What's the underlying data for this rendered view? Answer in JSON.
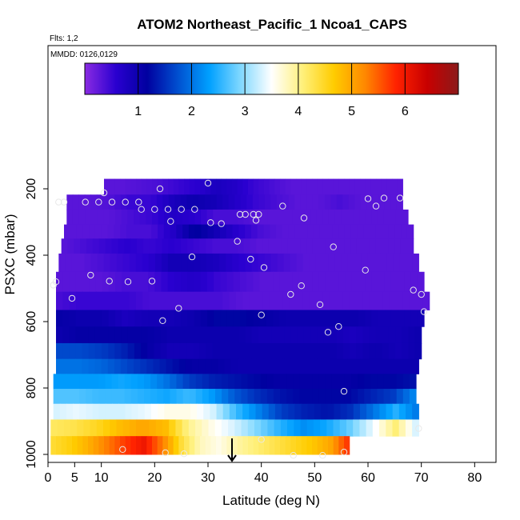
{
  "chart_data": {
    "type": "heatmap",
    "title": "ATOM2 Northeast_Pacific_1 Ncoa1_CAPS",
    "annotations": [
      "Flts: 1,2",
      "MMDD: 0126,0129"
    ],
    "xlabel": "Latitude (deg N)",
    "ylabel": "PSXC (mbar)",
    "xlim": [
      0,
      84
    ],
    "ylim": [
      1000,
      0
    ],
    "x_ticks": [
      0,
      5,
      10,
      20,
      30,
      40,
      50,
      60,
      70,
      80
    ],
    "y_ticks": [
      200,
      400,
      600,
      800,
      1000
    ],
    "colorbar": {
      "min": 0,
      "max": 7,
      "ticks": [
        1,
        2,
        3,
        4,
        5,
        6
      ],
      "colors": [
        "#8a2be2",
        "#2a00d0",
        "#0000a0",
        "#0050d0",
        "#00a0ff",
        "#80d8ff",
        "#ffffff",
        "#fff07a",
        "#ffcc00",
        "#ff8800",
        "#ff2200",
        "#c80000",
        "#8b1a1a"
      ]
    },
    "pressure_levels": [
      195,
      240,
      285,
      330,
      370,
      420,
      480,
      540,
      590,
      640,
      690,
      735,
      780,
      825,
      870,
      920,
      970
    ],
    "profiles": [
      {
        "lat_min": 10.5,
        "lat_max": 66.5,
        "values": [
          0.3,
          0.3,
          0.35,
          0.4,
          0.5,
          0.6,
          0.8,
          0.7,
          0.5,
          0.4,
          0.3,
          0.3,
          0.3,
          0.3,
          0.3,
          0.3,
          0.3
        ]
      },
      {
        "lat_min": 3.5,
        "lat_max": 66.5,
        "values": [
          0.3,
          0.3,
          0.35,
          0.5,
          0.5,
          0.8,
          1.0,
          0.9,
          0.7,
          0.5,
          0.4,
          0.3,
          0.3,
          0.4,
          0.3,
          0.3,
          0.3
        ]
      },
      {
        "lat_min": 3.5,
        "lat_max": 67.5,
        "values": [
          0.3,
          0.3,
          0.3,
          0.4,
          0.5,
          0.7,
          0.6,
          0.4,
          0.4,
          0.3,
          0.3,
          0.3,
          0.3,
          0.3,
          0.3,
          0.3,
          0.3
        ]
      },
      {
        "lat_min": 3.0,
        "lat_max": 68.5,
        "values": [
          0.3,
          0.3,
          0.3,
          0.4,
          0.4,
          0.7,
          1.2,
          0.9,
          0.6,
          0.4,
          0.3,
          0.3,
          0.3,
          0.3,
          0.3,
          0.3,
          0.3
        ]
      },
      {
        "lat_min": 2.5,
        "lat_max": 68.5,
        "values": [
          0.3,
          0.4,
          0.5,
          0.6,
          0.5,
          0.6,
          0.5,
          0.4,
          0.4,
          0.3,
          0.3,
          0.3,
          0.3,
          0.3,
          0.3,
          0.3,
          0.3
        ]
      },
      {
        "lat_min": 2.0,
        "lat_max": 69.5,
        "values": [
          0.3,
          0.3,
          0.4,
          0.5,
          0.6,
          0.9,
          0.9,
          0.8,
          0.6,
          0.5,
          0.4,
          0.3,
          0.3,
          0.3,
          0.3,
          0.3,
          0.3
        ]
      },
      {
        "lat_min": 1.5,
        "lat_max": 70.5,
        "values": [
          0.3,
          0.3,
          0.3,
          0.4,
          0.4,
          0.6,
          0.7,
          0.5,
          0.4,
          0.3,
          0.3,
          0.3,
          0.3,
          0.3,
          0.3,
          0.3,
          0.3
        ]
      },
      {
        "lat_min": 1.5,
        "lat_max": 71.5,
        "values": [
          0.4,
          0.5,
          0.5,
          0.5,
          0.4,
          0.4,
          0.4,
          0.4,
          0.3,
          0.3,
          0.3,
          0.3,
          0.3,
          0.3,
          0.3,
          0.3,
          0.3
        ]
      },
      {
        "lat_min": 1.5,
        "lat_max": 70.5,
        "values": [
          1.1,
          1.0,
          1.0,
          0.8,
          0.9,
          0.9,
          1.0,
          1.2,
          1.2,
          1.1,
          1.0,
          1.0,
          1.0,
          1.0,
          0.9,
          0.9,
          0.9
        ]
      },
      {
        "lat_min": 1.5,
        "lat_max": 70.0,
        "values": [
          1.0,
          1.1,
          1.1,
          1.1,
          1.1,
          1.0,
          1.0,
          1.0,
          1.0,
          0.9,
          0.9,
          0.9,
          0.9,
          0.8,
          0.9,
          0.9,
          1.0
        ]
      },
      {
        "lat_min": 1.5,
        "lat_max": 70.0,
        "values": [
          1.7,
          1.7,
          1.6,
          1.4,
          1.1,
          0.9,
          0.9,
          1.0,
          1.0,
          1.0,
          1.0,
          1.0,
          1.0,
          0.9,
          1.0,
          0.9,
          1.0
        ]
      },
      {
        "lat_min": 1.5,
        "lat_max": 69.5,
        "values": [
          2.0,
          2.0,
          1.9,
          1.7,
          1.5,
          1.3,
          1.1,
          1.1,
          1.0,
          1.0,
          1.0,
          1.0,
          1.0,
          1.0,
          1.0,
          1.0,
          1.0
        ]
      },
      {
        "lat_min": 1.0,
        "lat_max": 69.0,
        "values": [
          2.3,
          2.3,
          2.3,
          2.4,
          2.3,
          2.0,
          1.6,
          1.4,
          1.3,
          1.2,
          1.1,
          1.1,
          1.1,
          1.1,
          1.2,
          1.2,
          1.3
        ]
      },
      {
        "lat_min": 1.0,
        "lat_max": 69.0,
        "values": [
          2.7,
          2.7,
          2.6,
          2.6,
          2.5,
          2.4,
          2.6,
          2.3,
          1.8,
          1.5,
          1.3,
          1.2,
          1.2,
          1.2,
          1.4,
          1.6,
          2.2
        ]
      },
      {
        "lat_min": 1.0,
        "lat_max": 69.5,
        "values": [
          3.3,
          3.4,
          3.3,
          3.3,
          3.4,
          3.6,
          3.6,
          3.3,
          2.6,
          2.1,
          1.6,
          1.4,
          1.3,
          1.5,
          2.0,
          2.5,
          2.0
        ]
      },
      {
        "lat_min": 0.5,
        "lat_max": 69.5,
        "values": [
          4.2,
          4.3,
          4.5,
          4.8,
          5.0,
          4.8,
          4.0,
          3.6,
          3.3,
          2.9,
          2.5,
          2.2,
          2.4,
          2.8,
          3.4,
          4.1,
          3.2
        ]
      },
      {
        "lat_min": 0.5,
        "lat_max": 56.5,
        "values": [
          4.4,
          4.6,
          4.9,
          5.3,
          5.7,
          6.0,
          5.3,
          4.4,
          3.8,
          3.6,
          3.9,
          4.1,
          4.3,
          4.5,
          4.7,
          5.0,
          5.8
        ]
      }
    ],
    "observations": [
      [
        10.5,
        212
      ],
      [
        21.0,
        200
      ],
      [
        30.0,
        183
      ],
      [
        66.0,
        228
      ],
      [
        2.0,
        240
      ],
      [
        3.0,
        240
      ],
      [
        7.0,
        240
      ],
      [
        9.5,
        240
      ],
      [
        12.0,
        240
      ],
      [
        14.5,
        240
      ],
      [
        17.0,
        240
      ],
      [
        60.0,
        230
      ],
      [
        63.0,
        228
      ],
      [
        17.5,
        262
      ],
      [
        20.0,
        262
      ],
      [
        22.5,
        262
      ],
      [
        25.0,
        262
      ],
      [
        27.5,
        262
      ],
      [
        44.0,
        252
      ],
      [
        61.5,
        252
      ],
      [
        23.0,
        298
      ],
      [
        30.5,
        302
      ],
      [
        32.5,
        305
      ],
      [
        36.0,
        277
      ],
      [
        37.0,
        277
      ],
      [
        38.5,
        277
      ],
      [
        39.5,
        277
      ],
      [
        39.0,
        295
      ],
      [
        48.0,
        288
      ],
      [
        35.5,
        358
      ],
      [
        53.5,
        375
      ],
      [
        27.0,
        405
      ],
      [
        38.0,
        412
      ],
      [
        40.5,
        437
      ],
      [
        59.5,
        445
      ],
      [
        1.5,
        480
      ],
      [
        1.0,
        490
      ],
      [
        8.0,
        460
      ],
      [
        11.5,
        478
      ],
      [
        15.0,
        480
      ],
      [
        19.5,
        478
      ],
      [
        47.5,
        492
      ],
      [
        45.5,
        518
      ],
      [
        68.5,
        505
      ],
      [
        70.0,
        518
      ],
      [
        4.5,
        530
      ],
      [
        24.5,
        560
      ],
      [
        51.0,
        549
      ],
      [
        70.5,
        570
      ],
      [
        21.5,
        597
      ],
      [
        40.0,
        580
      ],
      [
        54.5,
        615
      ],
      [
        52.5,
        632
      ],
      [
        55.5,
        810
      ],
      [
        69.5,
        922
      ],
      [
        40.0,
        955
      ],
      [
        14.0,
        985
      ],
      [
        22.0,
        995
      ],
      [
        25.5,
        998
      ],
      [
        46.0,
        1003
      ],
      [
        51.5,
        1003
      ],
      [
        55.5,
        993
      ]
    ],
    "arrow_marker": {
      "latitude": 34.5,
      "pressure": 1000
    }
  }
}
